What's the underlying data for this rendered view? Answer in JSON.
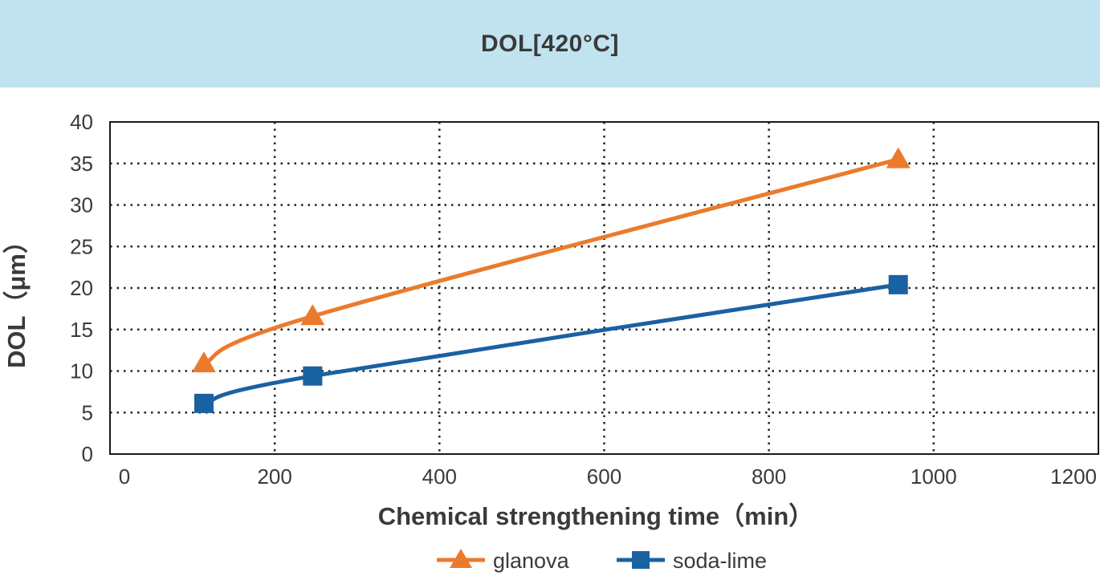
{
  "header": {
    "title": "DOL[420°C]"
  },
  "chart_data": {
    "type": "line",
    "xlabel": "Chemical strengthening time（min）",
    "ylabel": "DOL（μm）",
    "xlim": [
      0,
      1200
    ],
    "ylim": [
      0,
      40
    ],
    "xticks": [
      0,
      200,
      400,
      600,
      800,
      1000,
      1200
    ],
    "yticks": [
      0,
      5,
      10,
      15,
      20,
      25,
      30,
      35,
      40
    ],
    "grid": true,
    "legend_position": "bottom",
    "series": [
      {
        "name": "glanova",
        "marker": "triangle",
        "color": "#ec7a2d",
        "x": [
          114,
          246,
          957
        ],
        "y": [
          10.9,
          16.6,
          35.5
        ]
      },
      {
        "name": "soda-lime",
        "marker": "square",
        "color": "#1a61a1",
        "x": [
          114,
          246,
          957
        ],
        "y": [
          6.1,
          9.4,
          20.4
        ]
      }
    ]
  }
}
